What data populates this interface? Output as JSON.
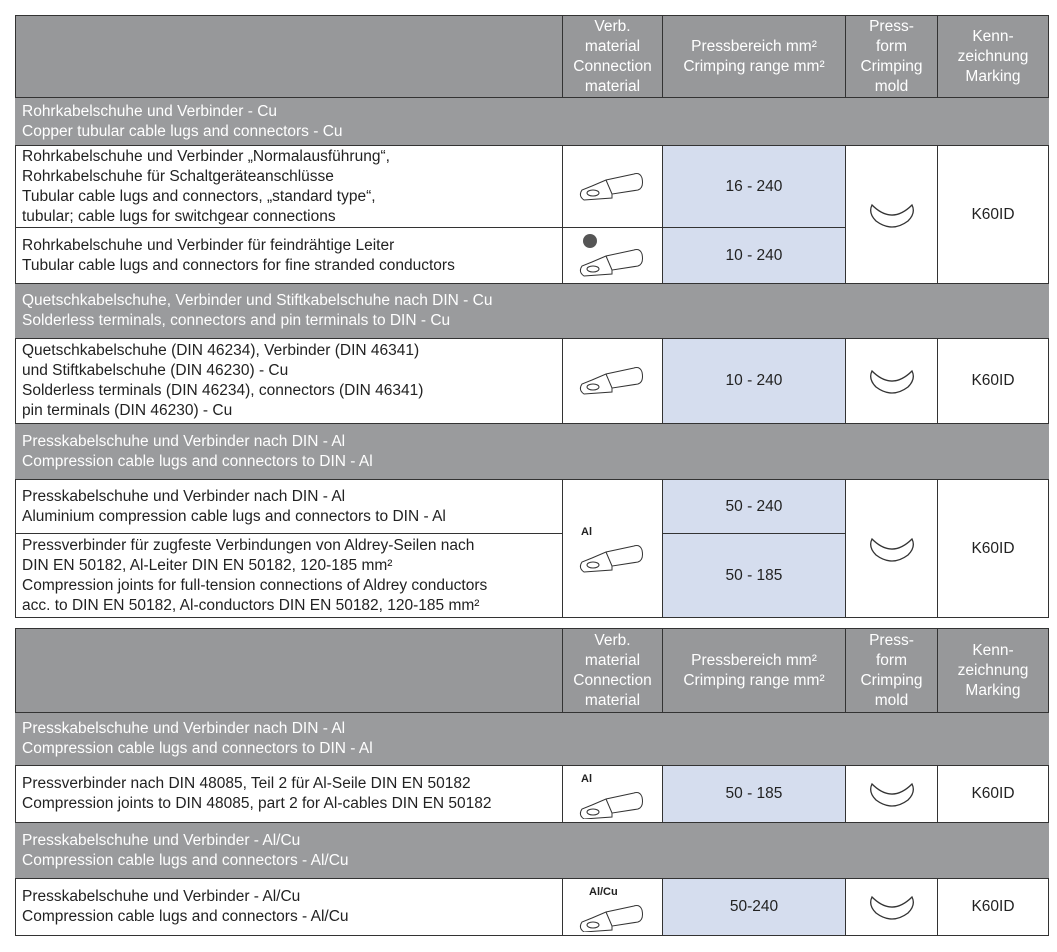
{
  "header": {
    "material": [
      "Verb.",
      "material",
      "Connection",
      "material"
    ],
    "range": [
      "Pressbereich mm²",
      "Crimping range mm²"
    ],
    "mold": [
      "Press-",
      "form",
      "Crimping",
      "mold"
    ],
    "marking": [
      "Kenn-",
      "zeichnung",
      "Marking"
    ]
  },
  "table1": {
    "sec1": [
      "Rohrkabelschuhe und Verbinder - Cu",
      "Copper tubular cable lugs and connectors - Cu"
    ],
    "r1": [
      "Rohrkabelschuhe und Verbinder „Normalausführung“,",
      "Rohrkabelschuhe für Schaltgeräteanschlüsse",
      "Tubular cable lugs and connectors, „standard type“,",
      "tubular; cable lugs for switchgear connections"
    ],
    "r1_range": "16 - 240",
    "r2": [
      "Rohrkabelschuhe und Verbinder für feindrähtige Leiter",
      "Tubular cable lugs and connectors for fine stranded conductors"
    ],
    "r2_range": "10 - 240",
    "g1_marking": "K60ID",
    "sec2": [
      "Quetschkabelschuhe, Verbinder und Stiftkabelschuhe nach DIN - Cu",
      "Solderless terminals, connectors and pin terminals to DIN - Cu"
    ],
    "r3": [
      "Quetschkabelschuhe (DIN 46234), Verbinder (DIN 46341)",
      "und Stiftkabelschuhe (DIN 46230)  - Cu",
      "Solderless terminals (DIN 46234), connectors (DIN 46341)",
      "pin terminals (DIN 46230) - Cu"
    ],
    "r3_range": "10 - 240",
    "r3_marking": "K60ID",
    "sec3": [
      "Presskabelschuhe und Verbinder nach DIN - Al",
      "Compression cable lugs and connectors to DIN - Al"
    ],
    "r4": [
      "Presskabelschuhe und Verbinder nach DIN - Al",
      "Aluminium compression cable lugs and connectors to DIN - Al"
    ],
    "r4_range": "50 - 240",
    "r5": [
      "Pressverbinder für zugfeste Verbindungen von Aldrey-Seilen nach",
      "DIN EN 50182, Al-Leiter DIN EN 50182, 120-185 mm²",
      "Compression joints for full-tension connections of Aldrey conductors",
      "acc. to DIN EN 50182, Al-conductors DIN EN 50182, 120-185 mm²"
    ],
    "r5_range": "50 - 185",
    "g3_label": "Al",
    "g3_marking": "K60ID"
  },
  "table2": {
    "sec1": [
      "Presskabelschuhe und Verbinder nach DIN - Al",
      "Compression cable lugs and connectors to DIN - Al"
    ],
    "r1": [
      "Pressverbinder nach DIN 48085, Teil 2 für Al-Seile DIN EN 50182",
      "Compression joints to DIN 48085, part 2 for Al-cables DIN EN 50182"
    ],
    "r1_label": "Al",
    "r1_range": "50 - 185",
    "r1_marking": "K60ID",
    "sec2": [
      "Presskabelschuhe und Verbinder - Al/Cu",
      "Compression cable lugs and connectors - Al/Cu"
    ],
    "r2": [
      "Presskabelschuhe und Verbinder - Al/Cu",
      "Compression cable lugs and connectors - Al/Cu"
    ],
    "r2_label": "Al/Cu",
    "r2_range": "50-240",
    "r2_marking": "K60ID"
  },
  "colors": {
    "header": "#97989a",
    "range_cell": "#d5ddee"
  }
}
